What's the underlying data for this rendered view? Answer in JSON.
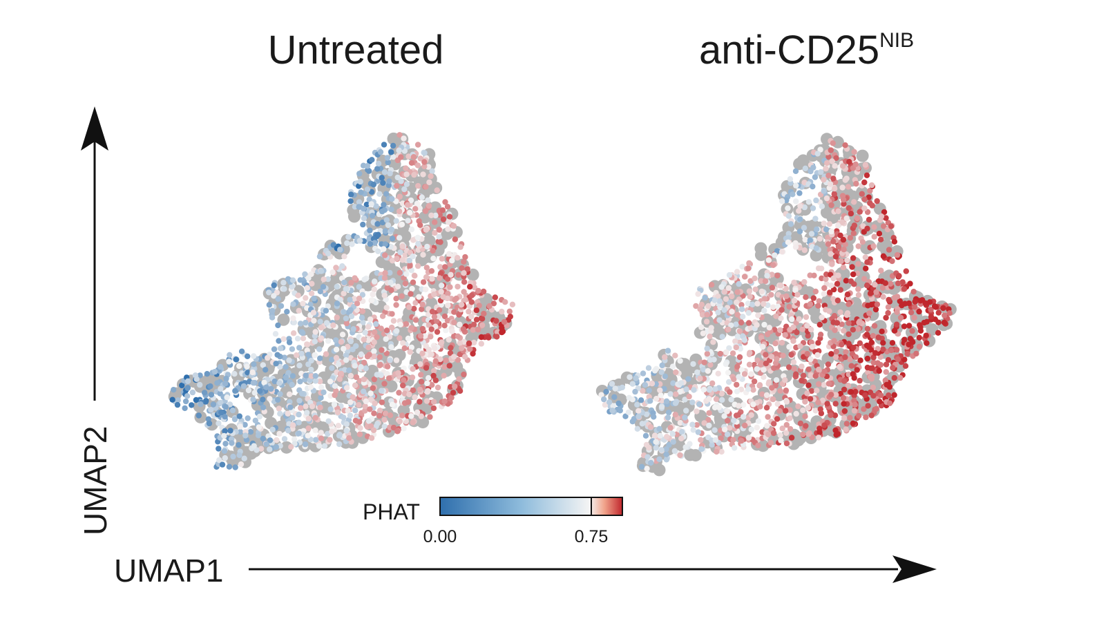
{
  "chart_data": {
    "type": "scatter",
    "panels": [
      {
        "title": "Untreated",
        "title_superscript": "",
        "description_of_values": "Cells colored by PHATE-derived score; more blue (low) in upper-left lobes, more red (high) toward right side"
      },
      {
        "title": "anti-CD25",
        "title_superscript": "NIB",
        "description_of_values": "Stronger red (high) region across center-right body; blue (low) on left"
      }
    ],
    "xlabel": "UMAP1",
    "ylabel": "UMAP2",
    "colorbar": {
      "label": "PHAT",
      "ticks": [
        "0.00",
        "0.75"
      ],
      "range": [
        0.0,
        0.85
      ],
      "low_color": "#2f6fad",
      "mid_color": "#f4f4f4",
      "high_color": "#c0262c"
    },
    "background_color": "#b3b3b3"
  }
}
